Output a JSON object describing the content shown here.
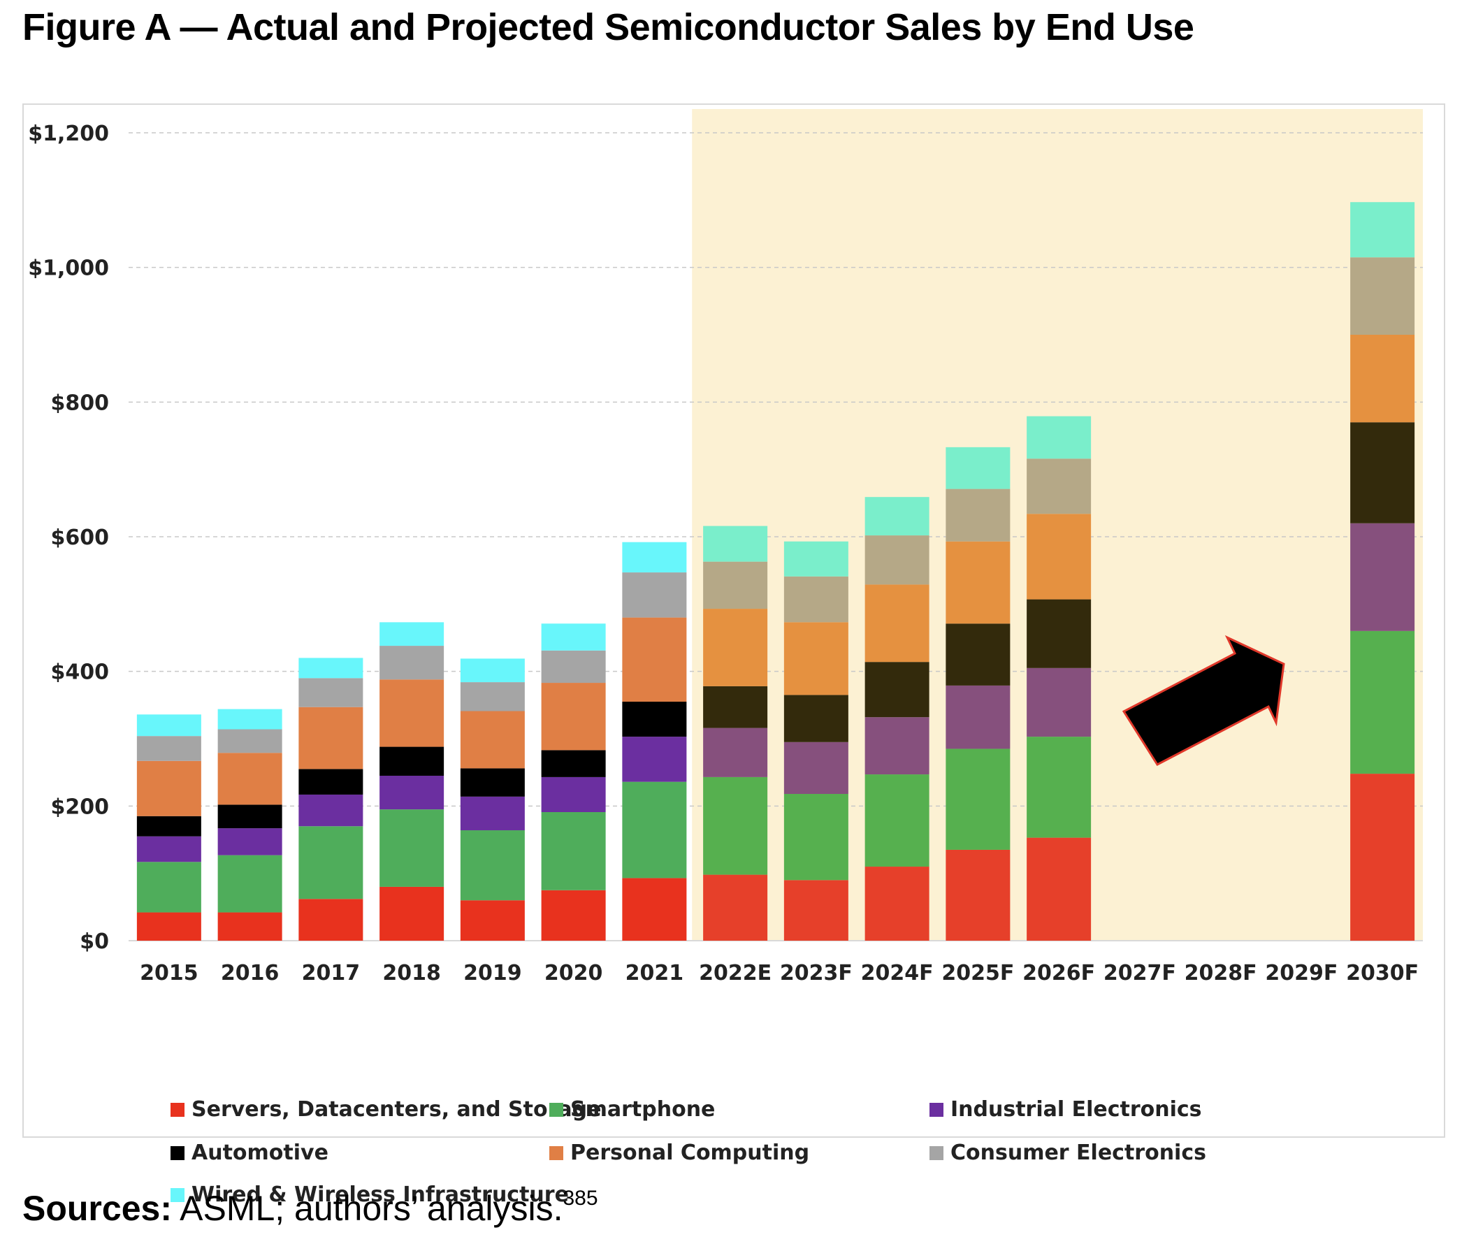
{
  "figure": {
    "title": "Figure A — Actual and Projected Semiconductor Sales by End Use"
  },
  "sources": {
    "label": "Sources:",
    "text": " ASML; authors’ analysis.",
    "footnote": "385"
  },
  "chart_data": {
    "type": "bar",
    "stacked": true,
    "title": "",
    "xlabel": "",
    "ylabel": "",
    "ylim": [
      0,
      1200
    ],
    "yticks": [
      0,
      200,
      400,
      600,
      800,
      1000,
      1200
    ],
    "ytick_labels": [
      "$0",
      "$200",
      "$400",
      "$600",
      "$800",
      "$1,000",
      "$1,200"
    ],
    "grid": true,
    "legend_position": "bottom",
    "categories": [
      "2015",
      "2016",
      "2017",
      "2018",
      "2019",
      "2020",
      "2021",
      "2022E",
      "2023F",
      "2024F",
      "2025F",
      "2026F",
      "2027F",
      "2028F",
      "2029F",
      "2030F"
    ],
    "projection_shading_start": "2022E",
    "annotation": "arrow",
    "series": [
      {
        "name": "Servers, Datacenters, and Storage",
        "actual_color": "#e8321e",
        "projected_color": "#e6402a",
        "values": [
          42,
          42,
          62,
          80,
          60,
          75,
          93,
          98,
          90,
          110,
          135,
          153,
          null,
          null,
          null,
          248
        ]
      },
      {
        "name": "Smartphone",
        "actual_color": "#4fad5b",
        "projected_color": "#56b04f",
        "values": [
          75,
          85,
          108,
          115,
          104,
          116,
          143,
          145,
          128,
          137,
          150,
          150,
          null,
          null,
          null,
          212
        ]
      },
      {
        "name": "Industrial Electronics",
        "actual_color": "#6b2fa0",
        "projected_color": "#86507d",
        "values": [
          38,
          40,
          47,
          50,
          50,
          52,
          67,
          73,
          77,
          85,
          94,
          102,
          null,
          null,
          null,
          160
        ]
      },
      {
        "name": "Automotive",
        "actual_color": "#000000",
        "projected_color": "#332a0c",
        "values": [
          30,
          35,
          38,
          43,
          42,
          40,
          52,
          62,
          70,
          82,
          92,
          102,
          null,
          null,
          null,
          150
        ]
      },
      {
        "name": "Personal Computing",
        "actual_color": "#e07f45",
        "projected_color": "#e59140",
        "values": [
          82,
          77,
          92,
          100,
          85,
          100,
          125,
          115,
          108,
          115,
          122,
          127,
          null,
          null,
          null,
          130
        ]
      },
      {
        "name": "Consumer Electronics",
        "actual_color": "#a5a5a5",
        "projected_color": "#b5a887",
        "values": [
          37,
          35,
          43,
          50,
          43,
          48,
          67,
          70,
          68,
          73,
          78,
          82,
          null,
          null,
          null,
          115
        ]
      },
      {
        "name": "Wired & Wireless Infrastructure",
        "actual_color": "#68f6fb",
        "projected_color": "#7aeecb",
        "values": [
          32,
          30,
          30,
          35,
          35,
          40,
          45,
          53,
          52,
          57,
          62,
          63,
          null,
          null,
          null,
          82
        ]
      }
    ]
  }
}
